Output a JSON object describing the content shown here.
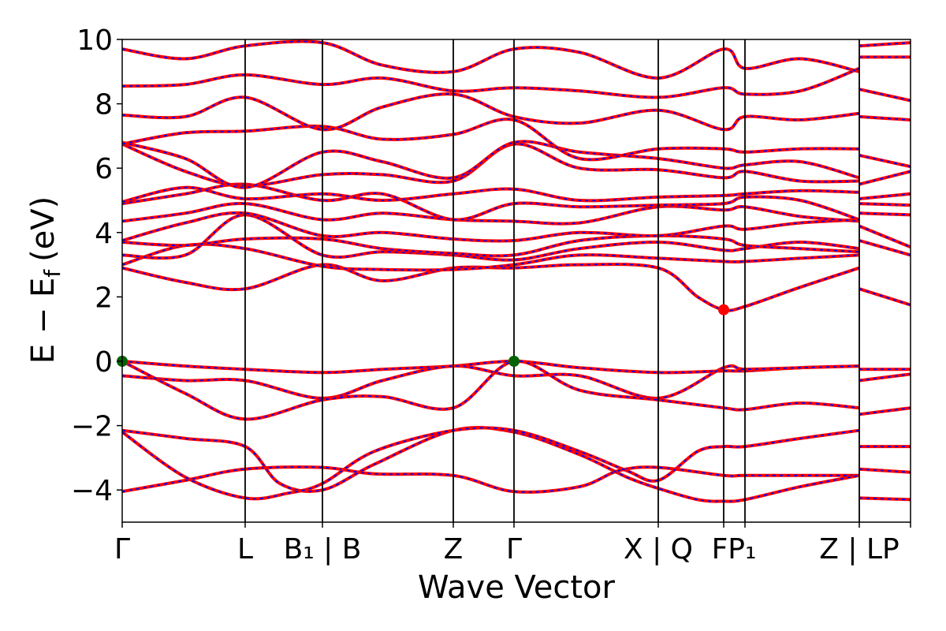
{
  "chart_data": {
    "type": "line",
    "title": "",
    "xlabel": "Wave Vector",
    "ylabel": "E − E",
    "ylabel_sub": "f",
    "ylabel_unit": "(eV)",
    "ylim": [
      -5,
      10
    ],
    "yticks": [
      {
        "value": 10,
        "label": "10"
      },
      {
        "value": 8,
        "label": "8"
      },
      {
        "value": 6,
        "label": "6"
      },
      {
        "value": 4,
        "label": "4"
      },
      {
        "value": 2,
        "label": "2"
      },
      {
        "value": 0,
        "label": "0"
      },
      {
        "value": -2,
        "label": "−2"
      },
      {
        "value": -4,
        "label": "−4"
      }
    ],
    "xlim": [
      0,
      10
    ],
    "kpoints": [
      {
        "x": 0.0,
        "label": "Γ"
      },
      {
        "x": 1.56,
        "label": "L"
      },
      {
        "x": 2.54,
        "label": "B₁ | B"
      },
      {
        "x": 4.2,
        "label": "Z"
      },
      {
        "x": 4.97,
        "label": "Γ"
      },
      {
        "x": 6.8,
        "label": "X | Q"
      },
      {
        "x": 7.63,
        "label": "F"
      },
      {
        "x": 7.9,
        "label": "P₁"
      },
      {
        "x": 9.35,
        "label": "Z | L"
      },
      {
        "x": 10.0,
        "label": "P"
      }
    ],
    "tick_text": [
      {
        "x": 0.0,
        "label": "Γ"
      },
      {
        "x": 1.56,
        "label": "L"
      },
      {
        "x": 2.54,
        "label": "B₁ | B"
      },
      {
        "x": 4.2,
        "label": "Z"
      },
      {
        "x": 4.97,
        "label": "Γ"
      },
      {
        "x": 6.8,
        "label": "X | Q"
      },
      {
        "x": 7.76,
        "label": "FP₁"
      },
      {
        "x": 9.35,
        "label": "Z | LP"
      }
    ],
    "series_style": {
      "solid_color": "#ff0000",
      "dashed_color": "#0000ff"
    },
    "markers": [
      {
        "x": 0.0,
        "y": 0.0,
        "color": "#006400"
      },
      {
        "x": 4.97,
        "y": 0.0,
        "color": "#006400"
      },
      {
        "x": 7.63,
        "y": 1.6,
        "color": "#ff0000"
      }
    ],
    "bands": [
      [
        [
          0,
          -4.05
        ],
        [
          0.8,
          -3.7
        ],
        [
          1.56,
          -3.35
        ],
        [
          2.54,
          -3.3
        ],
        [
          3.2,
          -3.5
        ],
        [
          4.2,
          -3.55
        ],
        [
          4.97,
          -4.05
        ],
        [
          5.8,
          -3.9
        ],
        [
          6.3,
          -3.4
        ],
        [
          6.8,
          -3.3
        ],
        [
          7.63,
          -3.55
        ],
        [
          7.9,
          -3.55
        ],
        [
          8.6,
          -3.55
        ],
        [
          9.35,
          -3.55
        ]
      ],
      [
        [
          0,
          -2.15
        ],
        [
          0.8,
          -2.4
        ],
        [
          1.56,
          -2.65
        ],
        [
          2.0,
          -3.8
        ],
        [
          2.54,
          -4.0
        ],
        [
          3.2,
          -3.2
        ],
        [
          4.2,
          -2.15
        ],
        [
          4.97,
          -2.2
        ],
        [
          5.8,
          -2.9
        ],
        [
          6.4,
          -3.6
        ],
        [
          6.8,
          -3.95
        ],
        [
          7.3,
          -4.3
        ],
        [
          7.63,
          -4.35
        ],
        [
          7.9,
          -4.3
        ],
        [
          8.6,
          -3.9
        ],
        [
          9.35,
          -3.55
        ]
      ],
      [
        [
          0,
          -2.2
        ],
        [
          0.8,
          -3.6
        ],
        [
          1.56,
          -4.25
        ],
        [
          2.1,
          -4.1
        ],
        [
          2.54,
          -3.8
        ],
        [
          3.2,
          -2.8
        ],
        [
          4.2,
          -2.15
        ],
        [
          4.97,
          -2.15
        ],
        [
          5.8,
          -2.8
        ],
        [
          6.4,
          -3.4
        ],
        [
          6.8,
          -3.7
        ],
        [
          7.3,
          -2.8
        ],
        [
          7.63,
          -2.65
        ],
        [
          7.9,
          -2.65
        ],
        [
          8.6,
          -2.4
        ],
        [
          9.35,
          -2.15
        ]
      ],
      [
        [
          0,
          0.0
        ],
        [
          0.8,
          -0.15
        ],
        [
          1.56,
          -0.25
        ],
        [
          2.54,
          -0.35
        ],
        [
          3.3,
          -0.25
        ],
        [
          4.2,
          -0.15
        ],
        [
          4.97,
          0.0
        ],
        [
          5.8,
          -0.2
        ],
        [
          6.8,
          -0.35
        ],
        [
          7.63,
          -0.3
        ],
        [
          7.9,
          -0.3
        ],
        [
          8.6,
          -0.2
        ],
        [
          9.35,
          -0.15
        ]
      ],
      [
        [
          0,
          -0.45
        ],
        [
          0.8,
          -0.6
        ],
        [
          1.56,
          -0.6
        ],
        [
          2.54,
          -1.15
        ],
        [
          3.3,
          -0.6
        ],
        [
          4.2,
          -0.15
        ],
        [
          4.97,
          -0.45
        ],
        [
          5.8,
          -0.45
        ],
        [
          6.8,
          -1.15
        ],
        [
          7.63,
          -0.2
        ],
        [
          7.9,
          -0.25
        ],
        [
          8.6,
          -0.2
        ],
        [
          9.35,
          -0.15
        ]
      ],
      [
        [
          0,
          0.0
        ],
        [
          0.8,
          -1.0
        ],
        [
          1.56,
          -1.8
        ],
        [
          2.54,
          -1.2
        ],
        [
          3.3,
          -1.1
        ],
        [
          4.2,
          -1.45
        ],
        [
          4.97,
          0.0
        ],
        [
          5.8,
          -0.9
        ],
        [
          6.8,
          -1.2
        ],
        [
          7.63,
          -1.45
        ],
        [
          7.9,
          -1.5
        ],
        [
          8.6,
          -1.3
        ],
        [
          9.35,
          -1.45
        ]
      ],
      [
        [
          0,
          2.9
        ],
        [
          0.8,
          2.45
        ],
        [
          1.56,
          2.25
        ],
        [
          2.54,
          3.0
        ],
        [
          3.3,
          2.5
        ],
        [
          4.2,
          2.9
        ],
        [
          4.97,
          2.9
        ],
        [
          5.8,
          3.0
        ],
        [
          6.8,
          2.9
        ],
        [
          7.3,
          2.0
        ],
        [
          7.63,
          1.6
        ],
        [
          7.9,
          1.7
        ],
        [
          8.6,
          2.3
        ],
        [
          9.35,
          2.9
        ]
      ],
      [
        [
          0,
          3.0
        ],
        [
          0.8,
          3.6
        ],
        [
          1.56,
          3.5
        ],
        [
          2.54,
          2.95
        ],
        [
          3.3,
          2.85
        ],
        [
          4.2,
          2.85
        ],
        [
          4.97,
          3.0
        ],
        [
          5.8,
          3.3
        ],
        [
          6.8,
          3.2
        ],
        [
          7.63,
          3.1
        ],
        [
          7.9,
          3.1
        ],
        [
          8.6,
          3.2
        ],
        [
          9.35,
          3.3
        ]
      ],
      [
        [
          0,
          3.3
        ],
        [
          0.8,
          3.3
        ],
        [
          1.56,
          4.55
        ],
        [
          2.54,
          3.3
        ],
        [
          3.3,
          3.4
        ],
        [
          4.2,
          3.3
        ],
        [
          4.97,
          3.15
        ],
        [
          5.8,
          3.5
        ],
        [
          6.8,
          3.7
        ],
        [
          7.63,
          3.45
        ],
        [
          7.9,
          3.5
        ],
        [
          8.6,
          3.7
        ],
        [
          9.35,
          3.5
        ]
      ],
      [
        [
          0,
          3.7
        ],
        [
          0.8,
          3.6
        ],
        [
          1.56,
          3.8
        ],
        [
          2.54,
          3.8
        ],
        [
          3.3,
          3.5
        ],
        [
          4.2,
          3.35
        ],
        [
          4.97,
          3.3
        ],
        [
          5.8,
          3.75
        ],
        [
          6.8,
          3.9
        ],
        [
          7.63,
          3.8
        ],
        [
          7.9,
          3.6
        ],
        [
          8.6,
          3.5
        ],
        [
          9.35,
          3.4
        ]
      ],
      [
        [
          0,
          3.75
        ],
        [
          0.8,
          4.3
        ],
        [
          1.56,
          4.6
        ],
        [
          2.54,
          3.9
        ],
        [
          3.3,
          4.0
        ],
        [
          4.2,
          3.8
        ],
        [
          4.97,
          3.75
        ],
        [
          5.8,
          4.0
        ],
        [
          6.8,
          3.9
        ],
        [
          7.63,
          4.2
        ],
        [
          7.9,
          4.1
        ],
        [
          8.6,
          4.3
        ],
        [
          9.35,
          4.4
        ]
      ],
      [
        [
          0,
          4.35
        ],
        [
          0.8,
          4.6
        ],
        [
          1.56,
          4.9
        ],
        [
          2.54,
          4.4
        ],
        [
          3.3,
          4.6
        ],
        [
          4.2,
          4.4
        ],
        [
          4.97,
          4.35
        ],
        [
          5.8,
          4.3
        ],
        [
          6.8,
          4.8
        ],
        [
          7.63,
          4.7
        ],
        [
          7.9,
          4.8
        ],
        [
          8.6,
          4.5
        ],
        [
          9.35,
          4.35
        ]
      ],
      [
        [
          0,
          4.9
        ],
        [
          0.8,
          5.2
        ],
        [
          1.56,
          5.5
        ],
        [
          2.54,
          5.0
        ],
        [
          3.3,
          5.2
        ],
        [
          4.2,
          4.4
        ],
        [
          4.97,
          4.9
        ],
        [
          5.8,
          4.8
        ],
        [
          6.8,
          4.85
        ],
        [
          7.63,
          4.9
        ],
        [
          7.9,
          5.1
        ],
        [
          8.6,
          5.0
        ],
        [
          9.35,
          4.4
        ]
      ],
      [
        [
          0,
          4.95
        ],
        [
          0.8,
          5.4
        ],
        [
          1.56,
          5.05
        ],
        [
          2.54,
          5.2
        ],
        [
          3.3,
          5.0
        ],
        [
          4.2,
          5.2
        ],
        [
          4.97,
          5.35
        ],
        [
          5.8,
          5.0
        ],
        [
          6.8,
          5.1
        ],
        [
          7.63,
          5.15
        ],
        [
          7.9,
          5.2
        ],
        [
          8.6,
          5.3
        ],
        [
          9.35,
          5.25
        ]
      ],
      [
        [
          0,
          6.75
        ],
        [
          0.8,
          5.9
        ],
        [
          1.56,
          5.45
        ],
        [
          2.54,
          5.8
        ],
        [
          3.3,
          5.8
        ],
        [
          4.2,
          5.6
        ],
        [
          4.97,
          6.75
        ],
        [
          5.8,
          6.0
        ],
        [
          6.8,
          5.95
        ],
        [
          7.63,
          5.7
        ],
        [
          7.9,
          5.9
        ],
        [
          8.6,
          5.6
        ],
        [
          9.35,
          5.6
        ]
      ],
      [
        [
          0,
          6.8
        ],
        [
          0.8,
          6.3
        ],
        [
          1.56,
          5.4
        ],
        [
          2.54,
          6.5
        ],
        [
          3.3,
          6.2
        ],
        [
          4.2,
          5.7
        ],
        [
          4.97,
          6.8
        ],
        [
          5.8,
          6.5
        ],
        [
          6.8,
          6.3
        ],
        [
          7.63,
          6.0
        ],
        [
          7.9,
          6.1
        ],
        [
          8.6,
          6.2
        ],
        [
          9.35,
          5.7
        ]
      ],
      [
        [
          0,
          6.75
        ],
        [
          0.8,
          7.1
        ],
        [
          1.56,
          7.15
        ],
        [
          2.54,
          7.3
        ],
        [
          3.3,
          6.9
        ],
        [
          4.2,
          7.05
        ],
        [
          4.97,
          7.5
        ],
        [
          5.8,
          6.3
        ],
        [
          6.8,
          6.6
        ],
        [
          7.63,
          6.6
        ],
        [
          7.9,
          6.5
        ],
        [
          8.6,
          6.6
        ],
        [
          9.35,
          6.6
        ]
      ],
      [
        [
          0,
          7.65
        ],
        [
          0.8,
          7.6
        ],
        [
          1.56,
          8.2
        ],
        [
          2.54,
          7.2
        ],
        [
          3.3,
          7.9
        ],
        [
          4.2,
          8.3
        ],
        [
          4.97,
          7.6
        ],
        [
          5.8,
          7.4
        ],
        [
          6.8,
          7.8
        ],
        [
          7.63,
          7.2
        ],
        [
          7.9,
          7.6
        ],
        [
          8.6,
          7.5
        ],
        [
          9.35,
          7.7
        ]
      ],
      [
        [
          0,
          8.55
        ],
        [
          0.8,
          8.6
        ],
        [
          1.56,
          8.9
        ],
        [
          2.54,
          8.6
        ],
        [
          3.3,
          8.8
        ],
        [
          4.2,
          8.4
        ],
        [
          4.97,
          8.5
        ],
        [
          5.8,
          8.4
        ],
        [
          6.8,
          8.2
        ],
        [
          7.63,
          8.5
        ],
        [
          7.9,
          8.3
        ],
        [
          8.6,
          8.4
        ],
        [
          9.35,
          9.1
        ]
      ],
      [
        [
          0,
          9.7
        ],
        [
          0.8,
          9.4
        ],
        [
          1.56,
          9.8
        ],
        [
          2.54,
          9.9
        ],
        [
          3.3,
          9.2
        ],
        [
          4.2,
          9.0
        ],
        [
          4.97,
          9.7
        ],
        [
          5.8,
          9.6
        ],
        [
          6.8,
          8.8
        ],
        [
          7.63,
          9.7
        ],
        [
          7.9,
          9.1
        ],
        [
          8.6,
          9.4
        ],
        [
          9.35,
          9.0
        ]
      ],
      [
        [
          9.35,
          -4.25
        ],
        [
          10,
          -4.3
        ]
      ],
      [
        [
          9.35,
          -3.35
        ],
        [
          10,
          -3.45
        ]
      ],
      [
        [
          9.35,
          -2.65
        ],
        [
          10,
          -2.65
        ]
      ],
      [
        [
          9.35,
          -1.65
        ],
        [
          10,
          -1.45
        ]
      ],
      [
        [
          9.35,
          -0.6
        ],
        [
          10,
          -0.4
        ]
      ],
      [
        [
          9.35,
          -0.25
        ],
        [
          10,
          -0.25
        ]
      ],
      [
        [
          9.35,
          2.25
        ],
        [
          10,
          1.75
        ]
      ],
      [
        [
          9.35,
          3.75
        ],
        [
          10,
          3.3
        ]
      ],
      [
        [
          9.35,
          4.2
        ],
        [
          10,
          3.55
        ]
      ],
      [
        [
          9.35,
          4.6
        ],
        [
          10,
          4.55
        ]
      ],
      [
        [
          9.35,
          4.9
        ],
        [
          10,
          4.85
        ]
      ],
      [
        [
          9.35,
          5.05
        ],
        [
          10,
          5.2
        ]
      ],
      [
        [
          9.35,
          5.5
        ],
        [
          10,
          5.9
        ]
      ],
      [
        [
          9.35,
          6.4
        ],
        [
          10,
          6.05
        ]
      ],
      [
        [
          9.35,
          7.6
        ],
        [
          10,
          7.5
        ]
      ],
      [
        [
          9.35,
          8.45
        ],
        [
          10,
          8.1
        ]
      ],
      [
        [
          9.35,
          9.45
        ],
        [
          10,
          9.45
        ]
      ],
      [
        [
          9.35,
          9.8
        ],
        [
          10,
          9.9
        ]
      ]
    ]
  }
}
